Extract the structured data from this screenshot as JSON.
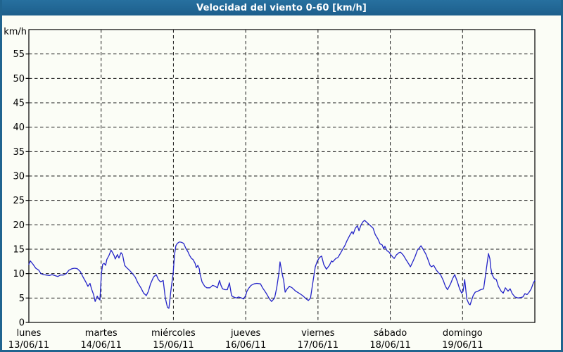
{
  "window": {
    "title": "Velocidad del viento 0-60 [km/h]"
  },
  "colors": {
    "titlebar": "#21658f",
    "frame": "#20648f",
    "background": "#fbfdf6",
    "plot_border": "#000000",
    "grid": "#1a1a1a",
    "line": "#2424c8",
    "title_text": "#ffffff",
    "label_text": "#000000"
  },
  "chart_data": {
    "type": "line",
    "title": "Velocidad del viento 0-60 [km/h]",
    "xlabel": "",
    "ylabel": "km/h",
    "ylim": [
      0,
      60
    ],
    "ytick_step": 5,
    "yticks": [
      0,
      5,
      10,
      15,
      20,
      25,
      30,
      35,
      40,
      45,
      50,
      55
    ],
    "x_unit": "hours_since_monday_00h",
    "xlim": [
      0,
      168
    ],
    "grid": "dashed",
    "legend_position": "none",
    "days": [
      {
        "name": "lunes",
        "date": "13/06/11"
      },
      {
        "name": "martes",
        "date": "14/06/11"
      },
      {
        "name": "miércoles",
        "date": "15/06/11"
      },
      {
        "name": "jueves",
        "date": "16/06/11"
      },
      {
        "name": "viernes",
        "date": "17/06/11"
      },
      {
        "name": "sábado",
        "date": "18/06/11"
      },
      {
        "name": "domingo",
        "date": "19/06/11"
      }
    ],
    "series": [
      {
        "name": "Velocidad del viento",
        "color": "#2424c8",
        "points": [
          [
            0,
            11.9
          ],
          [
            0.5,
            12.6
          ],
          [
            1.4,
            11.9
          ],
          [
            2.3,
            11.1
          ],
          [
            3.3,
            10.7
          ],
          [
            4,
            10
          ],
          [
            4.9,
            9.8
          ],
          [
            5.8,
            9.7
          ],
          [
            6.8,
            9.6
          ],
          [
            7.7,
            9.8
          ],
          [
            8.6,
            9.6
          ],
          [
            9.6,
            9.4
          ],
          [
            10.5,
            9.7
          ],
          [
            11.5,
            9.7
          ],
          [
            12.4,
            10
          ],
          [
            13.3,
            10.7
          ],
          [
            14.3,
            11
          ],
          [
            15.2,
            11.1
          ],
          [
            16.1,
            11
          ],
          [
            17.1,
            10.4
          ],
          [
            18,
            9.3
          ],
          [
            18.9,
            8.3
          ],
          [
            19.6,
            7.4
          ],
          [
            20.3,
            8
          ],
          [
            20.8,
            6.9
          ],
          [
            21.5,
            5.7
          ],
          [
            22,
            4.3
          ],
          [
            22.7,
            5.4
          ],
          [
            23.1,
            4.9
          ],
          [
            23.6,
            4.6
          ],
          [
            24.1,
            10
          ],
          [
            24.5,
            11.9
          ],
          [
            25,
            12.1
          ],
          [
            25.5,
            11.7
          ],
          [
            25.9,
            12.9
          ],
          [
            26.6,
            13.7
          ],
          [
            27.3,
            14.8
          ],
          [
            27.8,
            14.3
          ],
          [
            28.3,
            13.7
          ],
          [
            28.7,
            13
          ],
          [
            29.4,
            13.9
          ],
          [
            29.9,
            13.2
          ],
          [
            30.6,
            14.3
          ],
          [
            31.1,
            13.9
          ],
          [
            31.8,
            11.7
          ],
          [
            32.5,
            11.2
          ],
          [
            33.4,
            10.7
          ],
          [
            34.4,
            10
          ],
          [
            35.3,
            9.3
          ],
          [
            36.2,
            8.1
          ],
          [
            37.2,
            7.1
          ],
          [
            38.1,
            6
          ],
          [
            39,
            5.5
          ],
          [
            39.7,
            6.4
          ],
          [
            40.4,
            7.9
          ],
          [
            41.4,
            9.3
          ],
          [
            42.3,
            9.8
          ],
          [
            43,
            8.8
          ],
          [
            43.7,
            8.3
          ],
          [
            44.6,
            8.6
          ],
          [
            45.3,
            5
          ],
          [
            46,
            3.1
          ],
          [
            46.5,
            2.9
          ],
          [
            47.2,
            6.7
          ],
          [
            47.9,
            10
          ],
          [
            48.4,
            14
          ],
          [
            48.8,
            15.7
          ],
          [
            49.3,
            16.2
          ],
          [
            50,
            16.5
          ],
          [
            50.7,
            16.4
          ],
          [
            51.4,
            16.2
          ],
          [
            52.1,
            15.2
          ],
          [
            52.8,
            14.5
          ],
          [
            53.3,
            13.8
          ],
          [
            54,
            13.1
          ],
          [
            54.5,
            12.9
          ],
          [
            55.2,
            12.1
          ],
          [
            55.6,
            11.2
          ],
          [
            56.1,
            11.7
          ],
          [
            56.6,
            11
          ],
          [
            56.8,
            10
          ],
          [
            57.5,
            8.3
          ],
          [
            58.4,
            7.4
          ],
          [
            59.1,
            7.1
          ],
          [
            60.1,
            7.1
          ],
          [
            61,
            7.6
          ],
          [
            61.9,
            7.4
          ],
          [
            62.6,
            7.1
          ],
          [
            63.3,
            8.6
          ],
          [
            63.8,
            7.6
          ],
          [
            64.3,
            6.9
          ],
          [
            65.2,
            6.7
          ],
          [
            65.9,
            6.7
          ],
          [
            66.6,
            8.1
          ],
          [
            67.3,
            5.5
          ],
          [
            68,
            5.2
          ],
          [
            68.9,
            5
          ],
          [
            69.6,
            5.2
          ],
          [
            70.6,
            5
          ],
          [
            71.3,
            4.8
          ],
          [
            72,
            5.5
          ],
          [
            72.4,
            6.4
          ],
          [
            73.1,
            7.1
          ],
          [
            73.8,
            7.6
          ],
          [
            74.8,
            7.9
          ],
          [
            75.7,
            8
          ],
          [
            76.9,
            7.9
          ],
          [
            77.6,
            7.1
          ],
          [
            78.8,
            6
          ],
          [
            79.9,
            4.8
          ],
          [
            80.6,
            4.3
          ],
          [
            81.6,
            5
          ],
          [
            82.3,
            7.1
          ],
          [
            83,
            10
          ],
          [
            83.4,
            12.4
          ],
          [
            84.1,
            10
          ],
          [
            84.6,
            8.6
          ],
          [
            85.1,
            6.2
          ],
          [
            85.8,
            6.9
          ],
          [
            86.5,
            7.4
          ],
          [
            87.4,
            7.1
          ],
          [
            88.6,
            6.4
          ],
          [
            89.7,
            6
          ],
          [
            90.9,
            5.5
          ],
          [
            92.1,
            4.8
          ],
          [
            92.8,
            4.5
          ],
          [
            93.5,
            5
          ],
          [
            94.4,
            8.6
          ],
          [
            95.1,
            11.4
          ],
          [
            95.8,
            12.6
          ],
          [
            96.5,
            13.3
          ],
          [
            97.2,
            13.6
          ],
          [
            97.9,
            11.9
          ],
          [
            98.8,
            10.9
          ],
          [
            99.8,
            11.7
          ],
          [
            100.5,
            12.6
          ],
          [
            100.9,
            12.4
          ],
          [
            101.9,
            13.1
          ],
          [
            102.6,
            13.3
          ],
          [
            103.3,
            14
          ],
          [
            104.2,
            15
          ],
          [
            104.9,
            15.7
          ],
          [
            105.6,
            16.7
          ],
          [
            106.6,
            17.9
          ],
          [
            107.3,
            18.6
          ],
          [
            107.7,
            18.1
          ],
          [
            108.4,
            19.3
          ],
          [
            109.1,
            19.8
          ],
          [
            109.6,
            18.8
          ],
          [
            110.3,
            20
          ],
          [
            111,
            20.7
          ],
          [
            111.5,
            20.9
          ],
          [
            112.2,
            20.5
          ],
          [
            113.1,
            20
          ],
          [
            113.8,
            19.6
          ],
          [
            114.3,
            19.3
          ],
          [
            115,
            18
          ],
          [
            115.9,
            17.1
          ],
          [
            116.6,
            16.1
          ],
          [
            117.3,
            15.9
          ],
          [
            117.8,
            15.1
          ],
          [
            118.2,
            15.6
          ],
          [
            118.9,
            14.7
          ],
          [
            119.6,
            14.4
          ],
          [
            120,
            14
          ],
          [
            120.8,
            13.4
          ],
          [
            121.3,
            13.1
          ],
          [
            122,
            13.8
          ],
          [
            122.9,
            14.3
          ],
          [
            123.4,
            14.4
          ],
          [
            124.3,
            13.8
          ],
          [
            125.2,
            12.9
          ],
          [
            126,
            12.1
          ],
          [
            126.7,
            11.4
          ],
          [
            127.6,
            12.6
          ],
          [
            128.3,
            13.6
          ],
          [
            129,
            14.8
          ],
          [
            129.7,
            15.3
          ],
          [
            130.2,
            15.7
          ],
          [
            130.9,
            15
          ],
          [
            131.8,
            14
          ],
          [
            132.5,
            12.9
          ],
          [
            133.2,
            11.7
          ],
          [
            133.7,
            11.4
          ],
          [
            134.4,
            11.7
          ],
          [
            135.3,
            10.7
          ],
          [
            136,
            10.2
          ],
          [
            136.7,
            9.8
          ],
          [
            137.6,
            8.6
          ],
          [
            138.3,
            7.4
          ],
          [
            139,
            6.7
          ],
          [
            140,
            7.9
          ],
          [
            140.7,
            9
          ],
          [
            141.4,
            9.8
          ],
          [
            142.3,
            8.3
          ],
          [
            143,
            6.9
          ],
          [
            143.7,
            6
          ],
          [
            144.2,
            6.4
          ],
          [
            144.7,
            8.8
          ],
          [
            145.4,
            4.8
          ],
          [
            146.1,
            3.8
          ],
          [
            146.5,
            3.6
          ],
          [
            147.5,
            5.5
          ],
          [
            148.2,
            6.2
          ],
          [
            149.1,
            6.4
          ],
          [
            150,
            6.7
          ],
          [
            151,
            6.9
          ],
          [
            151.7,
            10
          ],
          [
            152.1,
            11.9
          ],
          [
            152.6,
            14.1
          ],
          [
            153.1,
            13
          ],
          [
            153.3,
            11.4
          ],
          [
            153.8,
            9.8
          ],
          [
            154.5,
            9
          ],
          [
            155.2,
            8.8
          ],
          [
            155.9,
            7.4
          ],
          [
            156.8,
            6.4
          ],
          [
            157.5,
            6
          ],
          [
            158.2,
            7.1
          ],
          [
            159.1,
            6.4
          ],
          [
            159.8,
            6.9
          ],
          [
            160.5,
            5.9
          ],
          [
            161.4,
            5.2
          ],
          [
            162.4,
            5
          ],
          [
            163.3,
            5.1
          ],
          [
            164,
            5.2
          ],
          [
            164.7,
            5.9
          ],
          [
            165.4,
            5.7
          ],
          [
            166.1,
            6.2
          ],
          [
            166.8,
            6.9
          ],
          [
            167.5,
            8.1
          ],
          [
            168,
            8.6
          ]
        ]
      }
    ]
  }
}
